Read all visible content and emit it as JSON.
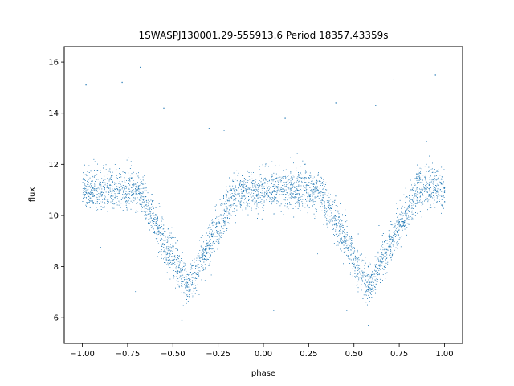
{
  "chart_data": {
    "type": "scatter",
    "title": "1SWASPJ130001.29-555913.6 Period 18357.43359s",
    "xlabel": "phase",
    "ylabel": "flux",
    "xlim": [
      -1.1,
      1.1
    ],
    "ylim": [
      5.0,
      16.6
    ],
    "xticks": [
      -1.0,
      -0.75,
      -0.5,
      -0.25,
      0.0,
      0.25,
      0.5,
      0.75,
      1.0
    ],
    "xtick_labels": [
      "−1.00",
      "−0.75",
      "−0.50",
      "−0.25",
      "0.00",
      "0.25",
      "0.50",
      "0.75",
      "1.00"
    ],
    "yticks": [
      6,
      8,
      10,
      12,
      14,
      16
    ],
    "ytick_labels": [
      "6",
      "8",
      "10",
      "12",
      "14",
      "16"
    ],
    "grid": false,
    "legend": "none",
    "marker_color": "#1f77b4",
    "series": [
      {
        "light_curve_profile": {
          "baseline_flux": 11.0,
          "baseline_scatter": 0.4,
          "eclipse_minima_phase": [
            -0.42,
            0.58
          ],
          "eclipse_depth_flux": 7.2,
          "eclipse_half_width_phase": 0.27,
          "outlier_flux_range": [
            5.5,
            16.0
          ]
        },
        "points": [
          [
            -0.98,
            10.9
          ],
          [
            -0.9,
            11.3
          ],
          [
            -0.82,
            10.7
          ],
          [
            -0.7,
            11.1
          ],
          [
            -0.62,
            9.9
          ],
          [
            -0.55,
            8.6
          ],
          [
            -0.48,
            7.6
          ],
          [
            -0.42,
            7.2
          ],
          [
            -0.36,
            7.7
          ],
          [
            -0.3,
            8.7
          ],
          [
            -0.22,
            9.8
          ],
          [
            -0.15,
            10.8
          ],
          [
            -0.05,
            11.0
          ],
          [
            0.05,
            10.9
          ],
          [
            0.15,
            11.2
          ],
          [
            0.25,
            10.8
          ],
          [
            0.3,
            11.0
          ],
          [
            0.38,
            9.9
          ],
          [
            0.45,
            8.6
          ],
          [
            0.52,
            7.6
          ],
          [
            0.58,
            7.2
          ],
          [
            0.64,
            7.7
          ],
          [
            0.7,
            8.6
          ],
          [
            0.78,
            9.8
          ],
          [
            0.85,
            10.7
          ],
          [
            0.95,
            11.0
          ],
          [
            1.0,
            10.9
          ],
          [
            -0.78,
            15.2
          ],
          [
            -0.55,
            14.2
          ],
          [
            0.12,
            13.8
          ],
          [
            0.4,
            14.4
          ],
          [
            0.62,
            14.3
          ],
          [
            0.95,
            15.5
          ],
          [
            -0.98,
            15.1
          ],
          [
            -0.3,
            13.4
          ],
          [
            0.72,
            15.3
          ],
          [
            0.9,
            12.9
          ],
          [
            -0.45,
            5.9
          ],
          [
            0.58,
            5.7
          ],
          [
            -0.68,
            15.8
          ]
        ]
      }
    ]
  }
}
